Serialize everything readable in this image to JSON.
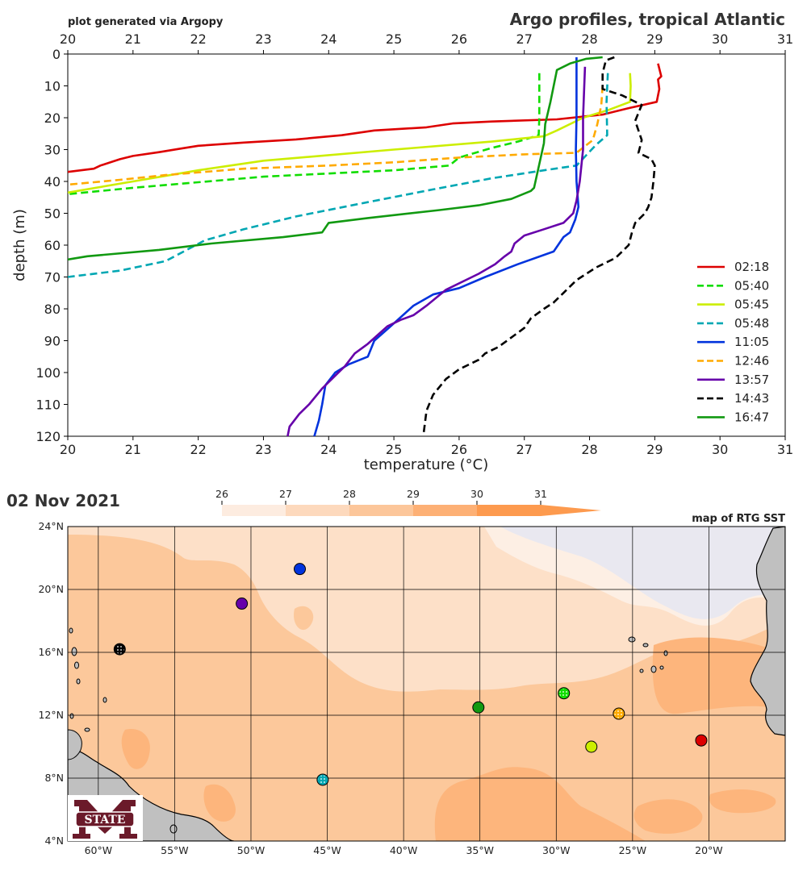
{
  "header": {
    "note": "plot generated via Argopy",
    "title": "Argo profiles, tropical Atlantic"
  },
  "chart_data": [
    {
      "type": "line",
      "title": "Argo profiles, tropical Atlantic",
      "xlabel": "temperature (°C)",
      "ylabel": "depth (m)",
      "xlim": [
        20,
        31
      ],
      "ylim": [
        120,
        0
      ],
      "y_inverted": true,
      "x_ticks": [
        20,
        21,
        22,
        23,
        24,
        25,
        26,
        27,
        28,
        29,
        30,
        31
      ],
      "x_tick_labels": [
        "20",
        "21",
        "22",
        "23",
        "24",
        "25",
        "26",
        "27",
        "28",
        "29",
        "30",
        "31"
      ],
      "y_ticks": [
        0,
        10,
        20,
        30,
        40,
        50,
        60,
        70,
        80,
        90,
        100,
        110,
        120
      ],
      "y_tick_labels": [
        "0",
        "10",
        "20",
        "30",
        "40",
        "50",
        "60",
        "70",
        "80",
        "90",
        "100",
        "110",
        "120"
      ],
      "x_axis_top_and_bottom": true,
      "grid": false,
      "legend_position": "right",
      "series": [
        {
          "name": "02:18",
          "color": "#dd0000",
          "dash": false,
          "points": [
            [
              29.05,
              3
            ],
            [
              29.1,
              7
            ],
            [
              29.05,
              8
            ],
            [
              29.07,
              11
            ],
            [
              29.05,
              13
            ],
            [
              29.03,
              15
            ],
            [
              28.6,
              17
            ],
            [
              28.2,
              19
            ],
            [
              27.5,
              20.5
            ],
            [
              26.5,
              21.2
            ],
            [
              25.9,
              21.8
            ],
            [
              25.5,
              23
            ],
            [
              24.7,
              24
            ],
            [
              24.2,
              25.5
            ],
            [
              23.5,
              26.8
            ],
            [
              22.7,
              27.8
            ],
            [
              22.0,
              28.8
            ],
            [
              21.7,
              29.8
            ],
            [
              21.4,
              30.8
            ],
            [
              21.0,
              32
            ],
            [
              20.8,
              33
            ],
            [
              20.5,
              35
            ],
            [
              20.4,
              36
            ],
            [
              20.0,
              37
            ]
          ]
        },
        {
          "name": "05:40",
          "color": "#11dd00",
          "dash": true,
          "points": [
            [
              27.23,
              6
            ],
            [
              27.23,
              12
            ],
            [
              27.23,
              20
            ],
            [
              27.22,
              25.5
            ],
            [
              26.9,
              27.5
            ],
            [
              26.5,
              29.5
            ],
            [
              26.0,
              32.5
            ],
            [
              25.85,
              35
            ],
            [
              25.0,
              36.5
            ],
            [
              23.0,
              38.5
            ],
            [
              21.0,
              42
            ],
            [
              20.0,
              44
            ]
          ]
        },
        {
          "name": "05:45",
          "color": "#ccee00",
          "dash": false,
          "points": [
            [
              28.62,
              6
            ],
            [
              28.63,
              10
            ],
            [
              28.62,
              15
            ],
            [
              28.3,
              17.5
            ],
            [
              27.9,
              20
            ],
            [
              27.5,
              24
            ],
            [
              27.3,
              25.8
            ],
            [
              26.5,
              27.5
            ],
            [
              25.0,
              30
            ],
            [
              23.0,
              33.5
            ],
            [
              22.0,
              36.5
            ],
            [
              21.0,
              40
            ],
            [
              20.0,
              43.5
            ]
          ]
        },
        {
          "name": "05:48",
          "color": "#00a7b3",
          "dash": true,
          "points": [
            [
              28.28,
              6
            ],
            [
              28.26,
              15
            ],
            [
              28.27,
              25.5
            ],
            [
              28.1,
              28.5
            ],
            [
              27.8,
              35
            ],
            [
              27.3,
              36.5
            ],
            [
              26.5,
              39
            ],
            [
              25.6,
              42.5
            ],
            [
              24.6,
              46.5
            ],
            [
              23.5,
              51
            ],
            [
              22.7,
              55
            ],
            [
              22.1,
              58.5
            ],
            [
              21.5,
              65
            ],
            [
              20.8,
              68
            ],
            [
              20.0,
              70
            ]
          ]
        },
        {
          "name": "11:05",
          "color": "#0033dd",
          "dash": false,
          "points": [
            [
              27.8,
              1
            ],
            [
              27.8,
              10
            ],
            [
              27.8,
              20
            ],
            [
              27.79,
              30
            ],
            [
              27.8,
              40
            ],
            [
              27.83,
              48
            ],
            [
              27.78,
              52
            ],
            [
              27.7,
              56
            ],
            [
              27.6,
              57.5
            ],
            [
              27.45,
              62
            ],
            [
              26.9,
              66
            ],
            [
              26.4,
              70
            ],
            [
              26.0,
              73.5
            ],
            [
              25.6,
              75.5
            ],
            [
              25.3,
              79
            ],
            [
              24.95,
              85.5
            ],
            [
              24.7,
              90
            ],
            [
              24.6,
              95
            ],
            [
              24.3,
              97.5
            ],
            [
              24.1,
              100
            ],
            [
              23.95,
              104
            ],
            [
              23.9,
              110
            ],
            [
              23.85,
              115
            ],
            [
              23.78,
              120
            ]
          ]
        },
        {
          "name": "12:46",
          "color": "#ffaa00",
          "dash": true,
          "points": [
            [
              28.2,
              10
            ],
            [
              28.18,
              16
            ],
            [
              28.12,
              22
            ],
            [
              28.05,
              27
            ],
            [
              27.8,
              31
            ],
            [
              27.0,
              31.5
            ],
            [
              26.0,
              32.5
            ],
            [
              25.0,
              34
            ],
            [
              24.0,
              35
            ],
            [
              22.7,
              36
            ],
            [
              21.5,
              38
            ],
            [
              20.8,
              39.5
            ],
            [
              20.0,
              41
            ]
          ]
        },
        {
          "name": "13:57",
          "color": "#6600aa",
          "dash": false,
          "points": [
            [
              27.93,
              4
            ],
            [
              27.9,
              20
            ],
            [
              27.9,
              30
            ],
            [
              27.85,
              40
            ],
            [
              27.8,
              46
            ],
            [
              27.75,
              50
            ],
            [
              27.6,
              53
            ],
            [
              27.3,
              55
            ],
            [
              27.0,
              57
            ],
            [
              26.85,
              59.5
            ],
            [
              26.8,
              62
            ],
            [
              26.7,
              63.5
            ],
            [
              26.55,
              66
            ],
            [
              26.3,
              69
            ],
            [
              25.8,
              74
            ],
            [
              25.5,
              79
            ],
            [
              25.3,
              82
            ],
            [
              25.1,
              83.5
            ],
            [
              24.9,
              85.5
            ],
            [
              24.6,
              91
            ],
            [
              24.4,
              94
            ],
            [
              24.25,
              98
            ],
            [
              24.15,
              100
            ],
            [
              23.9,
              105
            ],
            [
              23.7,
              110
            ],
            [
              23.55,
              113
            ],
            [
              23.4,
              117
            ],
            [
              23.37,
              120
            ]
          ]
        },
        {
          "name": "14:43",
          "color": "#000000",
          "dash": true,
          "points": [
            [
              28.38,
              1
            ],
            [
              28.25,
              2
            ],
            [
              28.2,
              6
            ],
            [
              28.2,
              11
            ],
            [
              28.5,
              13
            ],
            [
              28.8,
              16
            ],
            [
              28.7,
              21
            ],
            [
              28.8,
              27
            ],
            [
              28.75,
              31
            ],
            [
              28.95,
              33
            ],
            [
              29.0,
              35
            ],
            [
              28.98,
              40
            ],
            [
              28.95,
              45
            ],
            [
              28.9,
              48
            ],
            [
              28.85,
              50
            ],
            [
              28.7,
              53
            ],
            [
              28.65,
              56
            ],
            [
              28.6,
              60
            ],
            [
              28.4,
              64
            ],
            [
              28.1,
              67
            ],
            [
              27.8,
              71
            ],
            [
              27.6,
              75
            ],
            [
              27.45,
              78
            ],
            [
              27.3,
              80
            ],
            [
              27.1,
              83
            ],
            [
              27.0,
              86
            ],
            [
              26.8,
              89
            ],
            [
              26.6,
              92
            ],
            [
              26.4,
              94
            ],
            [
              26.3,
              96
            ],
            [
              26.0,
              99
            ],
            [
              25.8,
              102
            ],
            [
              25.6,
              107
            ],
            [
              25.5,
              112
            ],
            [
              25.45,
              120
            ]
          ]
        },
        {
          "name": "16:47",
          "color": "#119911",
          "dash": false,
          "points": [
            [
              28.2,
              1
            ],
            [
              27.95,
              1.5
            ],
            [
              27.7,
              3
            ],
            [
              27.5,
              5
            ],
            [
              27.45,
              10
            ],
            [
              27.4,
              15
            ],
            [
              27.32,
              22
            ],
            [
              27.3,
              28
            ],
            [
              27.15,
              42
            ],
            [
              27.1,
              43
            ],
            [
              26.8,
              45.5
            ],
            [
              26.3,
              47.5
            ],
            [
              25.7,
              49
            ],
            [
              24.6,
              51.5
            ],
            [
              24.0,
              53
            ],
            [
              23.9,
              56
            ],
            [
              23.3,
              57.5
            ],
            [
              22.2,
              59.5
            ],
            [
              21.4,
              61.5
            ],
            [
              20.3,
              63.5
            ],
            [
              20.0,
              64.5
            ]
          ]
        }
      ]
    },
    {
      "type": "scatter",
      "title": "map of RTG SST",
      "date": "02 Nov 2021",
      "lon_range": [
        -62,
        -15
      ],
      "lat_range": [
        4,
        24
      ],
      "lon_ticks": [
        -60,
        -55,
        -50,
        -45,
        -40,
        -35,
        -30,
        -25,
        -20
      ],
      "lon_tick_labels": [
        "60°W",
        "55°W",
        "50°W",
        "45°W",
        "40°W",
        "35°W",
        "30°W",
        "25°W",
        "20°W"
      ],
      "lat_ticks": [
        4,
        8,
        12,
        16,
        20,
        24
      ],
      "lat_tick_labels": [
        "4°N",
        "8°N",
        "12°N",
        "16°N",
        "20°N",
        "24°N"
      ],
      "grid": true,
      "colorbar": {
        "ticks": [
          26,
          27,
          28,
          29,
          30,
          31
        ],
        "tick_labels": [
          "26",
          "27",
          "28",
          "29",
          "30",
          "31"
        ],
        "colors": [
          "#fdece0",
          "#fdd9bd",
          "#fcc69a",
          "#fdb075",
          "#fd9a4e"
        ],
        "extend": "max",
        "position": "top"
      },
      "sst_field": {
        "units": "°C",
        "coarse_levels": {
          "cool_northeast": 25,
          "pale": 26.5,
          "main": 28.5,
          "warm_patches": 29.5
        }
      },
      "points": [
        {
          "name": "02:18",
          "lon": -20.5,
          "lat": 10.4,
          "color": "#dd0000"
        },
        {
          "name": "05:40",
          "lon": -29.5,
          "lat": 13.4,
          "color": "#11dd00"
        },
        {
          "name": "05:45",
          "lon": -27.7,
          "lat": 10.0,
          "color": "#ccee00"
        },
        {
          "name": "05:48",
          "lon": -45.3,
          "lat": 7.9,
          "color": "#00a7b3"
        },
        {
          "name": "11:05",
          "lon": -46.8,
          "lat": 21.3,
          "color": "#0033dd"
        },
        {
          "name": "12:46",
          "lon": -25.9,
          "lat": 12.1,
          "color": "#ffaa00"
        },
        {
          "name": "13:57",
          "lon": -50.6,
          "lat": 19.1,
          "color": "#6600aa"
        },
        {
          "name": "14:43",
          "lon": -58.6,
          "lat": 16.2,
          "color": "#000000"
        },
        {
          "name": "16:47",
          "lon": -35.1,
          "lat": 12.5,
          "color": "#119911"
        }
      ]
    }
  ],
  "logo": {
    "text": "STATE"
  },
  "colors": {
    "ocean_main": "#fcc89b",
    "ocean_pale": "#fde0c8",
    "ocean_warm": "#fdb57c",
    "ocean_cool": "#e9e8f0",
    "land": "#c0c0c0",
    "logo_maroon": "#6b1a2a"
  }
}
